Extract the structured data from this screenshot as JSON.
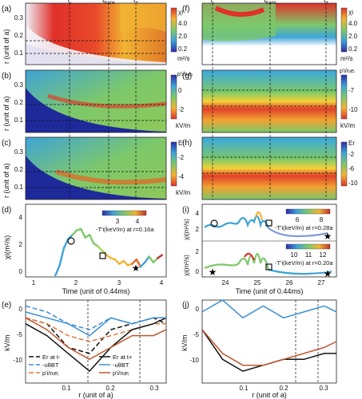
{
  "left": {
    "time_markers": [
      "t",
      "t",
      "t"
    ],
    "time_marker_subs": [
      "-",
      "trans",
      "+"
    ],
    "panels": [
      {
        "letter": "(a)",
        "ylabel": "r (unit of a)",
        "quantity": "χi",
        "unit": "m²/s",
        "yticks": [
          "0.3",
          "0.2",
          "0.1"
        ],
        "cbar_ticks": [
          "4.0",
          "2.0",
          "0.2"
        ]
      },
      {
        "letter": "(b)",
        "ylabel": "r (unit of a)",
        "quantity": "p'i/nᵢeᵢ",
        "unit": "kV/m",
        "yticks": [
          "0.3",
          "0.2",
          "0.1"
        ],
        "cbar_ticks": [
          "0",
          "-2"
        ]
      },
      {
        "letter": "(c)",
        "ylabel": "r (unit of a)",
        "quantity": "Er",
        "unit": "kV/m",
        "yticks": [
          "0.3",
          "0.2",
          "0.1"
        ],
        "cbar_ticks": [
          "-2",
          "-4"
        ]
      }
    ],
    "line_panel": {
      "letter": "(d)",
      "ylabel": "χi(m²/s)",
      "xlabel": "Time (unit of 0.44ms)",
      "yticks": [
        "4",
        "2",
        "0"
      ],
      "xticks": [
        "1",
        "2",
        "3",
        "4"
      ],
      "cbar_ticks": [
        "3",
        "4"
      ],
      "cbar_label": "-T'i(keV/m) at r=0.16a"
    }
  },
  "right": {
    "time_markers": [
      "t",
      "t",
      "t"
    ],
    "time_marker_subs": [
      "-",
      "trans",
      "+"
    ],
    "panels": [
      {
        "letter": "(f)",
        "quantity": "χi",
        "unit": "m²/s",
        "cbar_ticks": [
          "4.0",
          "2.0",
          "0.2"
        ]
      },
      {
        "letter": "(g)",
        "quantity": "p'i/nᵢeᵢ",
        "unit": "kV/m",
        "cbar_ticks": [
          "-7",
          "-10"
        ]
      },
      {
        "letter": "(h)",
        "quantity": "Er",
        "unit": "kV/m",
        "cbar_ticks": [
          "-2",
          "-6",
          "-10"
        ]
      }
    ],
    "line_panel": {
      "letter": "(i)",
      "ylabel_top": "χi(m²/s)",
      "ylabel_bottom": "χi(m²/s)",
      "xlabel": "Time (unit of 0.44ms)",
      "yticks_top": [
        "4",
        "2"
      ],
      "yticks_bottom": [
        "2",
        "0"
      ],
      "xticks": [
        "24",
        "25",
        "26",
        "27"
      ],
      "cbar1_ticks": [
        "6",
        "8"
      ],
      "cbar1_label": "-T'i(keV/m) at r=0.28a",
      "cbar2_ticks": [
        "10",
        "11",
        "12"
      ],
      "cbar2_label": "-T'i(keV/m) at r=0.20a"
    }
  },
  "profile_left": {
    "letter": "(e)",
    "ylabel": "kV/m",
    "xlabel": "r (unit of a)",
    "yticks": [
      "0",
      "-5",
      "-10"
    ],
    "xticks": [
      "0.1",
      "0.2",
      "0.3"
    ],
    "legend": [
      {
        "label": "Er at t-",
        "color": "#111111",
        "dash": "6,3"
      },
      {
        "label": "-uθBT",
        "color": "#3b8fd6",
        "dash": "6,3"
      },
      {
        "label": "p'i/nᵢeᵢ",
        "color": "#e07a3a",
        "dash": "6,3"
      },
      {
        "label": "Er at t+",
        "color": "#111111",
        "dash": ""
      },
      {
        "label": "-uθBT",
        "color": "#3b8fd6",
        "dash": ""
      },
      {
        "label": "p'i/nᵢeᵢ",
        "color": "#c0552e",
        "dash": ""
      }
    ]
  },
  "profile_right": {
    "letter": "(j)",
    "ylabel": "kV/m",
    "xlabel": "r (unit of a)",
    "yticks": [
      "0",
      "-5",
      "-10"
    ],
    "xticks": [
      "0.1",
      "0.2",
      "0.3"
    ]
  },
  "chart_data": [
    {
      "type": "line",
      "title": "",
      "xlabel": "Time (unit of 0.44ms)",
      "ylabel": "χi(m²/s)",
      "x": [
        1.5,
        1.6,
        1.7,
        1.8,
        1.9,
        2.0,
        2.1,
        2.2,
        2.3,
        2.4,
        2.5,
        2.6,
        2.7,
        2.8,
        2.9,
        3.0,
        3.1,
        3.2,
        3.3,
        3.4,
        3.5,
        3.6,
        3.7,
        3.8,
        3.9,
        4.0
      ],
      "y": [
        0.1,
        0.8,
        2.0,
        2.6,
        2.9,
        3.2,
        3.3,
        2.7,
        2.9,
        2.3,
        2.1,
        1.8,
        1.5,
        1.3,
        1.2,
        0.9,
        1.1,
        0.8,
        0.9,
        1.2,
        0.7,
        1.0,
        1.4,
        1.0,
        1.3,
        1.5
      ],
      "xlim": [
        0.8,
        4.1
      ],
      "ylim": [
        0,
        5
      ]
    },
    {
      "type": "line",
      "title": "",
      "xlabel": "r (unit of a)",
      "ylabel": "kV/m",
      "series": [
        {
          "name": "Er at t-",
          "x": [
            0.0,
            0.05,
            0.1,
            0.15,
            0.2,
            0.25,
            0.3,
            0.33
          ],
          "y": [
            -1,
            -2,
            -6,
            -7,
            -3,
            -2,
            -1,
            -2
          ]
        },
        {
          "name": "-uθBT",
          "x": [
            0.0,
            0.05,
            0.1,
            0.15,
            0.2,
            0.25,
            0.3,
            0.33
          ],
          "y": [
            1,
            0,
            -2,
            -3,
            -1,
            -2,
            -1,
            -1
          ]
        },
        {
          "name": "p'i/nᵢeᵢ",
          "x": [
            0.0,
            0.05,
            0.1,
            0.15,
            0.2,
            0.25,
            0.3,
            0.33
          ],
          "y": [
            -1,
            -2,
            -4,
            -5,
            -4,
            -3,
            -2,
            -2
          ]
        },
        {
          "name": "Er at t+",
          "x": [
            0.0,
            0.05,
            0.1,
            0.15,
            0.2,
            0.25,
            0.3,
            0.33
          ],
          "y": [
            -2,
            -4,
            -7,
            -10,
            -6,
            -3,
            -2,
            -1
          ]
        },
        {
          "name": "-uθBT",
          "x": [
            0.0,
            0.05,
            0.1,
            0.15,
            0.2,
            0.25,
            0.3,
            0.33
          ],
          "y": [
            0,
            -1,
            -2,
            -4,
            -1,
            -2,
            -1,
            -1
          ]
        },
        {
          "name": "p'i/nᵢeᵢ",
          "x": [
            0.0,
            0.05,
            0.1,
            0.15,
            0.2,
            0.25,
            0.3,
            0.33
          ],
          "y": [
            -1,
            -3,
            -6,
            -8,
            -6,
            -4,
            -4,
            -3
          ]
        }
      ],
      "ylim": [
        -12,
        2
      ]
    },
    {
      "type": "line",
      "title": "",
      "xlabel": "r (unit of a)",
      "ylabel": "kV/m",
      "series": [
        {
          "x": [
            0.0,
            0.05,
            0.1,
            0.15,
            0.2,
            0.25,
            0.3,
            0.33
          ],
          "y": [
            0,
            2,
            -1,
            1,
            -1,
            0,
            1,
            0
          ]
        },
        {
          "x": [
            0.0,
            0.05,
            0.1,
            0.15,
            0.2,
            0.25,
            0.3,
            0.33
          ],
          "y": [
            -3,
            -8,
            -10,
            -9,
            -8,
            -8,
            -7,
            -7
          ]
        },
        {
          "x": [
            0.0,
            0.05,
            0.1,
            0.15,
            0.2,
            0.25,
            0.3,
            0.33
          ],
          "y": [
            -3,
            -7,
            -9,
            -9,
            -8,
            -7,
            -6,
            -5
          ]
        }
      ],
      "ylim": [
        -12,
        2
      ]
    }
  ]
}
